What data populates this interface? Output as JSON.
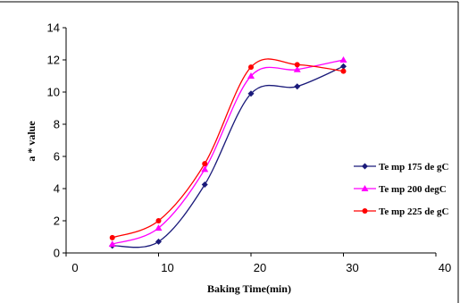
{
  "chart_data": {
    "type": "line",
    "xlabel": "Baking Time(min)",
    "ylabel": "a * value",
    "xlim": [
      0,
      40
    ],
    "ylim": [
      0,
      14
    ],
    "xticks": [
      "0",
      "10",
      "20",
      "30",
      "40"
    ],
    "yticks": [
      "0",
      "2",
      "4",
      "6",
      "8",
      "10",
      "12",
      "14"
    ],
    "x": [
      5,
      10,
      15,
      20,
      25,
      30
    ],
    "grid": false,
    "legend_position": "right",
    "series": [
      {
        "name": "Te mp 175 de gC",
        "color": "#1a1a7a",
        "marker": "diamond",
        "values": [
          0.45,
          0.7,
          4.25,
          9.9,
          10.35,
          11.6
        ]
      },
      {
        "name": "Te mp 200 degC",
        "color": "#ff00ff",
        "marker": "triangle",
        "values": [
          0.55,
          1.55,
          5.2,
          11.0,
          11.4,
          12.0
        ]
      },
      {
        "name": "Te mp 225 de gC",
        "color": "#ff0000",
        "marker": "circle",
        "values": [
          0.95,
          2.0,
          5.55,
          11.55,
          11.7,
          11.3
        ]
      }
    ]
  }
}
